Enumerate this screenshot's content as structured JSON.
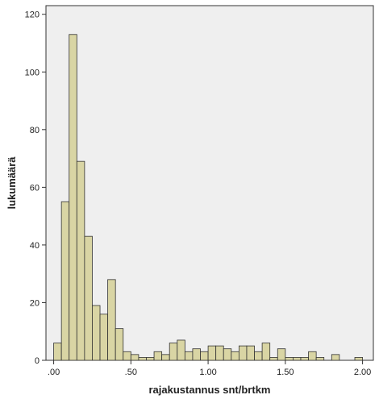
{
  "chart_data": {
    "type": "bar",
    "subtype": "histogram",
    "title": "",
    "xlabel": "rajakustannus snt/brtkm",
    "ylabel": "lukumäärä",
    "xlim": [
      -0.05,
      2.07
    ],
    "ylim": [
      0,
      123
    ],
    "bin_width": 0.05,
    "x_ticks": [
      0,
      0.5,
      1.0,
      1.5,
      2.0
    ],
    "x_tick_labels": [
      ".00",
      ".50",
      "1.00",
      "1.50",
      "2.00"
    ],
    "y_ticks": [
      0,
      20,
      40,
      60,
      80,
      100,
      120
    ],
    "y_tick_labels": [
      "0",
      "20",
      "40",
      "60",
      "80",
      "100",
      "120"
    ],
    "grid": false,
    "legend": "none",
    "bins_start": [
      0.0,
      0.05,
      0.1,
      0.15,
      0.2,
      0.25,
      0.3,
      0.35,
      0.4,
      0.45,
      0.5,
      0.55,
      0.6,
      0.65,
      0.7,
      0.75,
      0.8,
      0.85,
      0.9,
      0.95,
      1.0,
      1.05,
      1.1,
      1.15,
      1.2,
      1.25,
      1.3,
      1.35,
      1.4,
      1.45,
      1.5,
      1.55,
      1.6,
      1.65,
      1.7,
      1.75,
      1.8,
      1.85,
      1.9,
      1.95
    ],
    "values": [
      6,
      55,
      113,
      69,
      43,
      19,
      16,
      28,
      11,
      3,
      2,
      1,
      1,
      3,
      2,
      6,
      7,
      3,
      4,
      3,
      5,
      5,
      4,
      3,
      5,
      5,
      3,
      6,
      1,
      4,
      1,
      1,
      1,
      3,
      1,
      0,
      2,
      0,
      0,
      1
    ],
    "colors": {
      "bar_fill": "#d9d5a4",
      "bar_stroke": "#333333",
      "plot_background": "#efefef",
      "axis": "#333333"
    }
  }
}
